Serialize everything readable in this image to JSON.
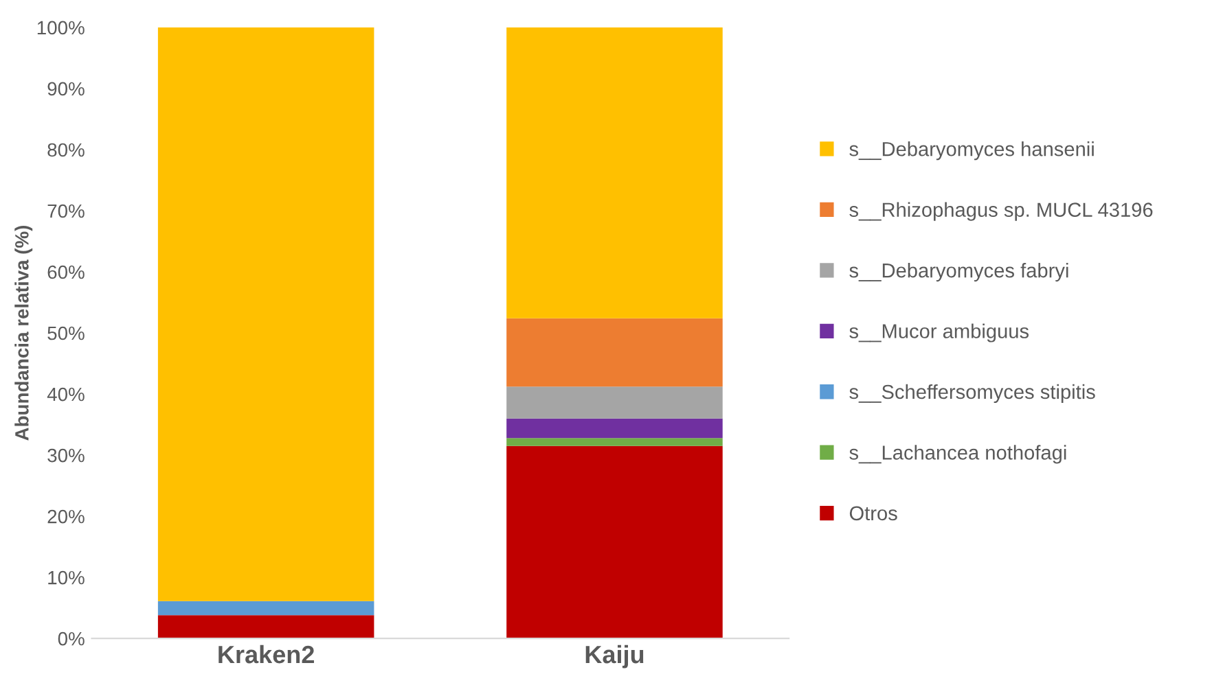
{
  "chart_data": {
    "type": "bar",
    "stacked": true,
    "ylabel": "Abundancia relativa (%)",
    "categories": [
      "Kraken2",
      "Kaiju"
    ],
    "series": [
      {
        "name": "Otros",
        "color": "#c00000",
        "values": [
          3.8,
          31.5
        ]
      },
      {
        "name": "s__Lachancea nothofagi",
        "color": "#70ad47",
        "values": [
          0,
          1.3
        ]
      },
      {
        "name": "s__Scheffersomyces stipitis",
        "color": "#5b9bd5",
        "values": [
          2.3,
          0
        ]
      },
      {
        "name": "s__Mucor ambiguus",
        "color": "#7030a0",
        "values": [
          0,
          3.2
        ]
      },
      {
        "name": "s__Debaryomyces fabryi",
        "color": "#a5a5a5",
        "values": [
          0,
          5.2
        ]
      },
      {
        "name": "s__Rhizophagus sp. MUCL 43196",
        "color": "#ed7d31",
        "values": [
          0,
          11.2
        ]
      },
      {
        "name": "s__Debaryomyces hansenii",
        "color": "#ffc000",
        "values": [
          93.9,
          47.6
        ]
      }
    ],
    "ylim": [
      0,
      100
    ],
    "yticks": [
      {
        "value": 0,
        "label": "0%"
      },
      {
        "value": 10,
        "label": "10%"
      },
      {
        "value": 20,
        "label": "20%"
      },
      {
        "value": 30,
        "label": "30%"
      },
      {
        "value": 40,
        "label": "40%"
      },
      {
        "value": 50,
        "label": "50%"
      },
      {
        "value": 60,
        "label": "60%"
      },
      {
        "value": 70,
        "label": "70%"
      },
      {
        "value": 80,
        "label": "80%"
      },
      {
        "value": 90,
        "label": "90%"
      },
      {
        "value": 100,
        "label": "100%"
      }
    ],
    "grid": false,
    "legend": "right"
  }
}
